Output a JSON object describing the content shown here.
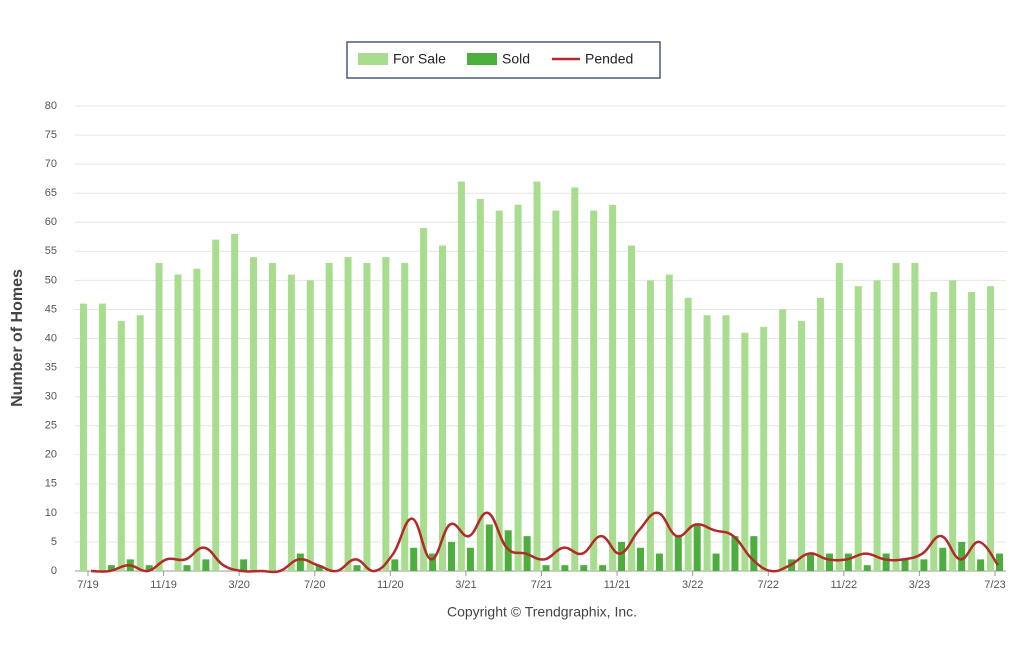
{
  "chart_data": {
    "type": "bar",
    "y_label": "Number of Homes",
    "footer": "Copyright © Trendgraphix, Inc.",
    "categories": [
      "7/19",
      null,
      null,
      null,
      "11/19",
      null,
      null,
      null,
      "3/20",
      null,
      null,
      null,
      "7/20",
      null,
      null,
      null,
      "11/20",
      null,
      null,
      null,
      "3/21",
      null,
      null,
      null,
      "7/21",
      null,
      null,
      null,
      "11/21",
      null,
      null,
      null,
      "3/22",
      null,
      null,
      null,
      "7/22",
      null,
      null,
      null,
      "11/22",
      null,
      null,
      null,
      "3/23",
      null,
      null,
      null,
      "7/23"
    ],
    "series": [
      {
        "name": "For Sale",
        "type": "bar",
        "color": "#a8dc8e",
        "values": [
          46,
          46,
          43,
          44,
          53,
          51,
          52,
          57,
          58,
          54,
          53,
          51,
          50,
          53,
          54,
          53,
          54,
          53,
          59,
          56,
          67,
          64,
          62,
          63,
          67,
          62,
          66,
          62,
          63,
          56,
          50,
          51,
          47,
          44,
          44,
          41,
          42,
          45,
          43,
          47,
          53,
          49,
          50,
          53,
          53,
          48,
          50,
          48,
          49
        ]
      },
      {
        "name": "Sold",
        "type": "bar",
        "color": "#4cae3c",
        "values": [
          0,
          1,
          2,
          1,
          0,
          1,
          2,
          0,
          2,
          0,
          0,
          3,
          1,
          0,
          1,
          0,
          2,
          4,
          3,
          5,
          4,
          8,
          7,
          6,
          1,
          1,
          1,
          1,
          5,
          4,
          3,
          6,
          8,
          3,
          6,
          6,
          0,
          2,
          3,
          3,
          3,
          1,
          3,
          2,
          2,
          4,
          5,
          2,
          3
        ]
      },
      {
        "name": "Pended",
        "type": "line",
        "color": "#b32a2a",
        "values": [
          0,
          0,
          1,
          0,
          2,
          2,
          4,
          1,
          0,
          0,
          0,
          2,
          1,
          0,
          2,
          0,
          3,
          9,
          2,
          8,
          6,
          10,
          4,
          3,
          2,
          4,
          3,
          6,
          3,
          7,
          10,
          6,
          8,
          7,
          6,
          2,
          0,
          1,
          3,
          2,
          2,
          3,
          2,
          2,
          3,
          6,
          2,
          5,
          1
        ]
      }
    ],
    "ylim": [
      0,
      80
    ],
    "yticks": [
      0,
      5,
      10,
      15,
      20,
      25,
      30,
      35,
      40,
      45,
      50,
      55,
      60,
      65,
      70,
      75,
      80
    ],
    "grid": true
  }
}
